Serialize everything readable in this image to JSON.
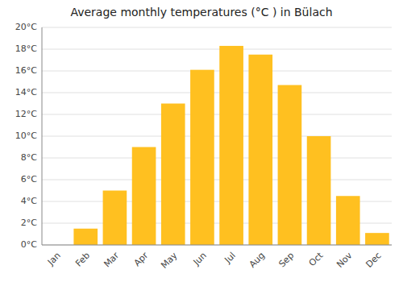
{
  "chart_data": {
    "type": "bar",
    "title": "Average monthly temperatures (°C ) in Bülach",
    "categories": [
      "Jan",
      "Feb",
      "Mar",
      "Apr",
      "May",
      "Jun",
      "Jul",
      "Aug",
      "Sep",
      "Oct",
      "Nov",
      "Dec"
    ],
    "values": [
      0.0,
      1.5,
      5.0,
      9.0,
      13.0,
      16.1,
      18.3,
      17.5,
      14.7,
      10.0,
      4.5,
      1.1
    ],
    "color": "#FFC020",
    "ylim": [
      0,
      20
    ],
    "yticks": [
      {
        "value": 0,
        "label": "0°C"
      },
      {
        "value": 2,
        "label": "2°C"
      },
      {
        "value": 4,
        "label": "4°C"
      },
      {
        "value": 6,
        "label": "6°C"
      },
      {
        "value": 8,
        "label": "8°C"
      },
      {
        "value": 10,
        "label": "10°C"
      },
      {
        "value": 12,
        "label": "12°C"
      },
      {
        "value": 14,
        "label": "14°C"
      },
      {
        "value": 16,
        "label": "16°C"
      },
      {
        "value": 18,
        "label": "18°C"
      },
      {
        "value": 20,
        "label": "20°C"
      }
    ],
    "grid": true
  }
}
